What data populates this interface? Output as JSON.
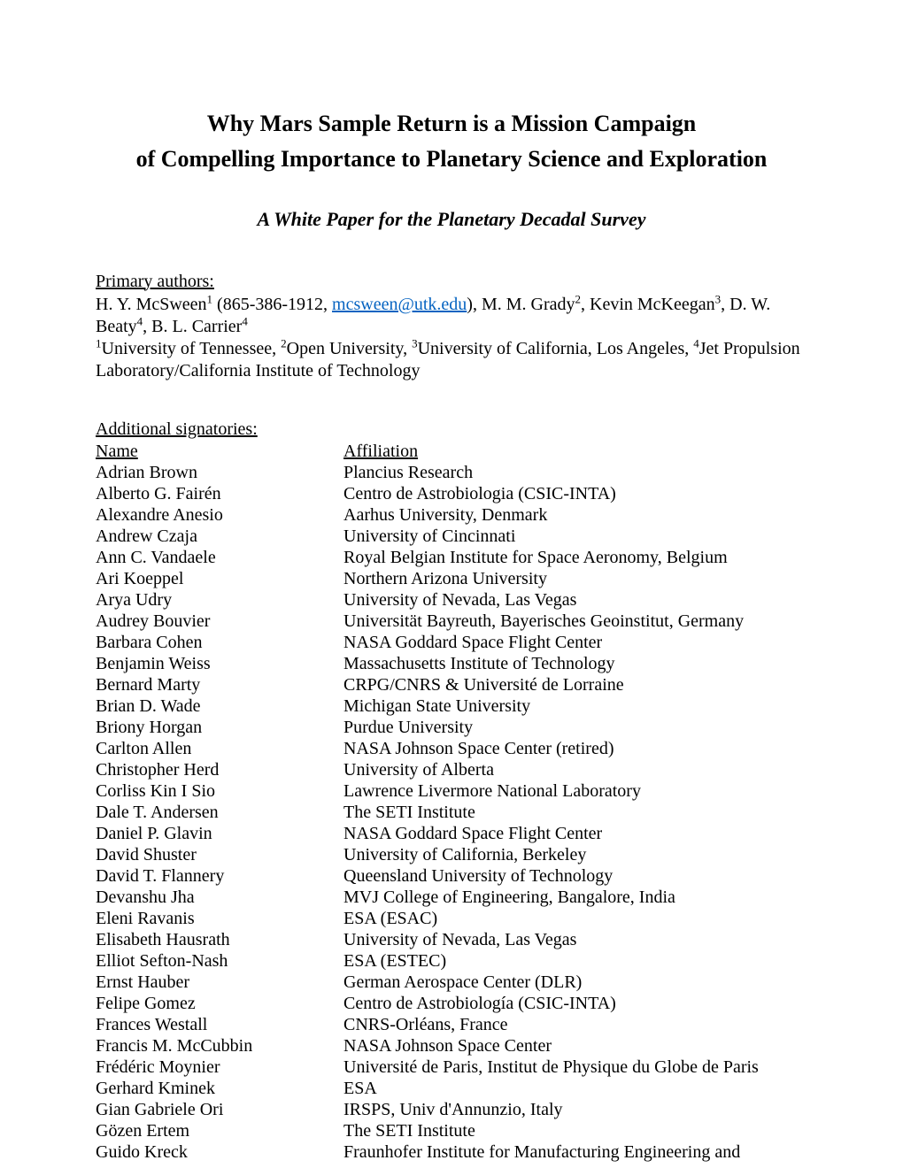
{
  "title_line1": "Why Mars Sample Return is a Mission Campaign",
  "title_line2": "of Compelling Importance to Planetary Science and Exploration",
  "subtitle": "A White Paper for the Planetary Decadal Survey",
  "primary_label": "Primary authors:",
  "primary_authors_html": "H. Y. McSween<sup>1</sup> (865-386-1912, <a href=\"#\" data-name=\"email-link\" data-interactable=\"true\">mcsween@utk.edu</a>), M. M. Grady<sup>2</sup>, Kevin McKeegan<sup>3</sup>, D. W. Beaty<sup>4</sup>, B. L. Carrier<sup>4</sup>",
  "affiliations_html": "<sup>1</sup>University of Tennessee, <sup>2</sup>Open University, <sup>3</sup>University of California, Los Angeles, <sup>4</sup>Jet Propulsion Laboratory/California Institute of Technology",
  "additional_label": "Additional signatories:",
  "sig_header_name": "Name",
  "sig_header_aff": "Affiliation",
  "signatories": [
    {
      "name": "Adrian Brown",
      "aff": "Plancius Research"
    },
    {
      "name": "Alberto G. Fairén",
      "aff": "Centro de Astrobiologia (CSIC-INTA)"
    },
    {
      "name": "Alexandre Anesio",
      "aff": "Aarhus University, Denmark"
    },
    {
      "name": "Andrew Czaja",
      "aff": "University of Cincinnati"
    },
    {
      "name": "Ann C. Vandaele",
      "aff": "Royal Belgian Institute for Space Aeronomy, Belgium"
    },
    {
      "name": "Ari Koeppel",
      "aff": "Northern Arizona University"
    },
    {
      "name": "Arya Udry",
      "aff": "University of Nevada, Las Vegas"
    },
    {
      "name": "Audrey Bouvier",
      "aff": "Universität Bayreuth, Bayerisches Geoinstitut, Germany"
    },
    {
      "name": "Barbara Cohen",
      "aff": "NASA Goddard Space Flight Center"
    },
    {
      "name": "Benjamin Weiss",
      "aff": "Massachusetts Institute of Technology"
    },
    {
      "name": "Bernard Marty",
      "aff": "CRPG/CNRS & Université de Lorraine"
    },
    {
      "name": "Brian D. Wade",
      "aff": "Michigan State University"
    },
    {
      "name": "Briony Horgan",
      "aff": "Purdue University"
    },
    {
      "name": "Carlton Allen",
      "aff": "NASA Johnson Space Center (retired)"
    },
    {
      "name": "Christopher Herd",
      "aff": "University of Alberta"
    },
    {
      "name": "Corliss Kin I Sio",
      "aff": "Lawrence Livermore National Laboratory"
    },
    {
      "name": "Dale T. Andersen",
      "aff": "The SETI Institute"
    },
    {
      "name": "Daniel P. Glavin",
      "aff": "NASA Goddard Space Flight Center"
    },
    {
      "name": "David Shuster",
      "aff": "University of California, Berkeley"
    },
    {
      "name": "David T. Flannery",
      "aff": "Queensland University of Technology"
    },
    {
      "name": "Devanshu Jha",
      "aff": "MVJ College of Engineering, Bangalore, India"
    },
    {
      "name": "Eleni Ravanis",
      "aff": "ESA (ESAC)"
    },
    {
      "name": "Elisabeth Hausrath",
      "aff": "University of Nevada, Las Vegas"
    },
    {
      "name": "Elliot Sefton-Nash",
      "aff": "ESA (ESTEC)"
    },
    {
      "name": "Ernst Hauber",
      "aff": "German Aerospace Center (DLR)"
    },
    {
      "name": "Felipe Gomez",
      "aff": "Centro de Astrobiología (CSIC-INTA)"
    },
    {
      "name": "Frances Westall",
      "aff": "CNRS-Orléans, France"
    },
    {
      "name": "Francis M. McCubbin",
      "aff": "NASA Johnson Space Center"
    },
    {
      "name": "Frédéric Moynier",
      "aff": "Université de Paris, Institut de Physique du Globe de Paris"
    },
    {
      "name": "Gerhard Kminek",
      "aff": "ESA"
    },
    {
      "name": "Gian Gabriele Ori",
      "aff": "IRSPS, Univ d'Annunzio, Italy"
    },
    {
      "name": "Gözen Ertem",
      "aff": "The SETI Institute"
    },
    {
      "name": "Guido Kreck",
      "aff": "Fraunhofer Institute for Manufacturing Engineering and"
    }
  ]
}
